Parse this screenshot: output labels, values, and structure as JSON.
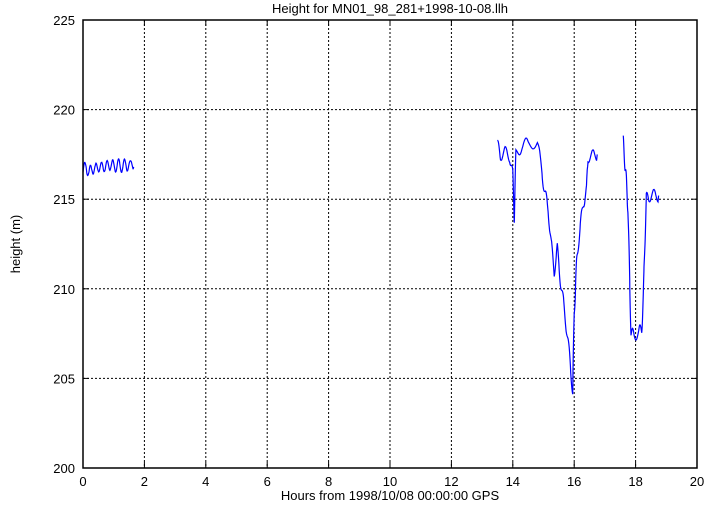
{
  "chart_data": {
    "type": "line",
    "title": "Height for MN01_98_281+1998-10-08.llh",
    "xlabel": "Hours from 1998/10/08 00:00:00 GPS",
    "ylabel": "height (m)",
    "xlim": [
      0,
      20
    ],
    "ylim": [
      200,
      225
    ],
    "xticks": [
      0,
      2,
      4,
      6,
      8,
      10,
      12,
      14,
      16,
      18,
      20
    ],
    "yticks": [
      200,
      205,
      210,
      215,
      220,
      225
    ],
    "grid": true,
    "series_color": "#0000ff",
    "series": [
      {
        "x": [
          0.0,
          0.1,
          0.2,
          0.3,
          0.4,
          0.5,
          0.6,
          0.7,
          0.8,
          0.9,
          1.0,
          1.1,
          1.2,
          1.3,
          1.4,
          1.5,
          1.65
        ],
        "y": [
          216.5,
          216.9,
          216.4,
          216.8,
          216.6,
          216.9,
          216.7,
          216.9,
          216.8,
          217.0,
          216.8,
          216.9,
          216.9,
          216.8,
          217.0,
          216.8,
          216.8
        ]
      },
      {
        "x": [
          13.5,
          13.6,
          13.75,
          13.9,
          14.0,
          14.05,
          14.1,
          14.3,
          14.5,
          14.8,
          14.95,
          15.05,
          15.15,
          15.25,
          15.35,
          15.45,
          15.55,
          15.65,
          15.75,
          15.85,
          15.95,
          16.0,
          16.05,
          16.1,
          16.2,
          16.3,
          16.4,
          16.45,
          16.6,
          16.75
        ],
        "y": [
          218.0,
          217.5,
          217.6,
          217.4,
          216.3,
          214.0,
          217.5,
          218.0,
          218.1,
          218.2,
          216.5,
          215.3,
          214.5,
          212.5,
          211.0,
          212.2,
          210.5,
          209.2,
          207.8,
          206.2,
          204.3,
          208.5,
          210.5,
          212.0,
          213.5,
          214.8,
          215.5,
          217.4,
          217.4,
          217.5
        ]
      },
      {
        "x": [
          17.6,
          17.65,
          17.7,
          17.75,
          17.8,
          17.85,
          17.95,
          18.1,
          18.2,
          18.25,
          18.3,
          18.35,
          18.45,
          18.6,
          18.75
        ],
        "y": [
          218.2,
          217.0,
          216.0,
          214.5,
          211.0,
          207.5,
          207.4,
          207.6,
          207.7,
          209.5,
          212.5,
          215.0,
          215.2,
          215.2,
          215.2
        ]
      }
    ]
  }
}
